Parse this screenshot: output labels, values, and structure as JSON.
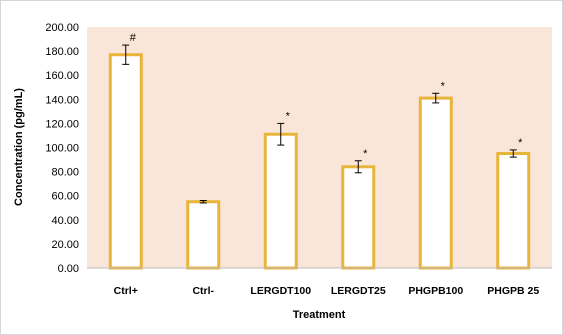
{
  "chart_data": {
    "type": "bar",
    "xlabel": "Treatment",
    "ylabel": "Concentration (pg/mL)",
    "ylim": [
      0,
      200
    ],
    "yticks": [
      "0.00",
      "20.00",
      "40.00",
      "60.00",
      "80.00",
      "100.00",
      "120.00",
      "140.00",
      "160.00",
      "180.00",
      "200.00"
    ],
    "categories": [
      "Ctrl+",
      "Ctrl-",
      "LERGDT100",
      "LERGDT25",
      "PHGPB100",
      "PHGPB 25"
    ],
    "values": [
      177,
      55,
      111,
      84,
      141,
      95
    ],
    "errors": [
      8,
      1,
      9,
      5,
      4,
      3
    ],
    "annotations": [
      "#",
      "",
      "*",
      "*",
      "*",
      "*"
    ],
    "grid": false,
    "colors": {
      "plot_background": "#fae6d8",
      "bar_fill": "#ffffff",
      "bar_edge": "#e8b43a",
      "error_bar": "#000000",
      "frame": "#d6d6d6"
    }
  }
}
